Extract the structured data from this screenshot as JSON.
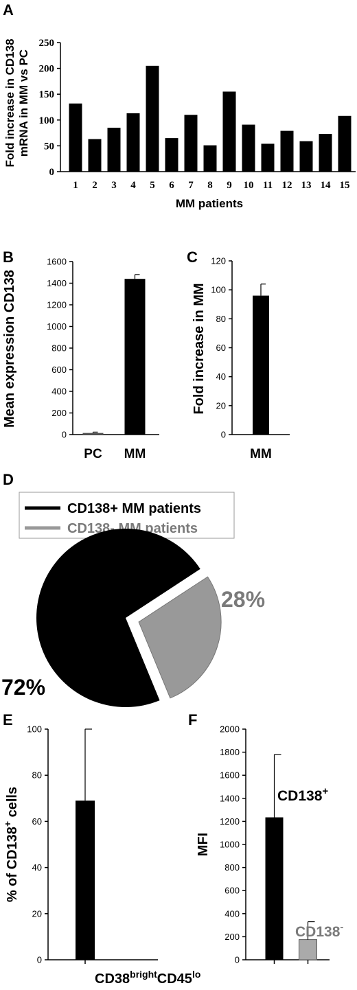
{
  "chart_data": [
    {
      "panel": "A",
      "type": "bar",
      "categories": [
        "1",
        "2",
        "3",
        "4",
        "5",
        "6",
        "7",
        "8",
        "9",
        "10",
        "11",
        "12",
        "13",
        "14",
        "15"
      ],
      "values": [
        132,
        63,
        85,
        113,
        205,
        65,
        110,
        51,
        155,
        91,
        54,
        79,
        59,
        73,
        108
      ],
      "xlabel": "MM patients",
      "ylabel_lines": [
        "Fold increase in CD138",
        "mRNA in MM vs PC"
      ],
      "ylim": [
        0,
        250
      ],
      "yticks": [
        "0",
        "50",
        "100",
        "150",
        "200",
        "250"
      ],
      "bar_color": "#000000"
    },
    {
      "panel": "B",
      "type": "bar",
      "categories": [
        "PC",
        "MM"
      ],
      "values": [
        15,
        1440
      ],
      "errors": [
        8,
        40
      ],
      "ylabel": "Mean expression CD138",
      "ylim": [
        0,
        1600
      ],
      "yticks": [
        "0",
        "200",
        "400",
        "600",
        "800",
        "1000",
        "1200",
        "1400",
        "1600"
      ],
      "bar_colors": [
        "#555555",
        "#000000"
      ]
    },
    {
      "panel": "C",
      "type": "bar",
      "categories": [
        "MM"
      ],
      "values": [
        96
      ],
      "errors": [
        8
      ],
      "ylabel": "Fold increase in MM",
      "ylim": [
        0,
        120
      ],
      "yticks": [
        "0",
        "20",
        "40",
        "60",
        "80",
        "100",
        "120"
      ],
      "bar_colors": [
        "#000000"
      ]
    },
    {
      "panel": "D",
      "type": "pie",
      "slices": [
        {
          "label": "CD138+ MM patients",
          "value": 72,
          "pct_label": "72%",
          "color": "#000000"
        },
        {
          "label": "CD138-  MM patients",
          "value": 28,
          "pct_label": "28%",
          "color": "#999999",
          "text_color": "#7a7a7a"
        }
      ],
      "legend": "top"
    },
    {
      "panel": "E",
      "type": "bar",
      "categories": [
        ""
      ],
      "values": [
        69
      ],
      "errors": [
        31
      ],
      "ylabel_pre": "% of  CD138",
      "ylabel_sup": "+",
      "ylabel_post": " cells",
      "xlabel_parts": [
        "CD38",
        "bright",
        "CD45",
        "lo"
      ],
      "ylim": [
        0,
        100
      ],
      "yticks": [
        "0",
        "20",
        "40",
        "60",
        "80",
        "100"
      ],
      "bar_colors": [
        "#000000"
      ]
    },
    {
      "panel": "F",
      "type": "bar",
      "categories": [
        "",
        ""
      ],
      "values": [
        1235,
        175
      ],
      "errors": [
        545,
        155
      ],
      "ylabel": "MFI",
      "ylim": [
        0,
        2000
      ],
      "yticks": [
        "0",
        "200",
        "400",
        "600",
        "800",
        "1000",
        "1200",
        "1400",
        "1600",
        "1800",
        "2000"
      ],
      "bar_colors": [
        "#000000",
        "#aaaaaa"
      ],
      "annotations": [
        {
          "text": "CD138",
          "sup": "+",
          "color": "#000000"
        },
        {
          "text": "CD138",
          "sup": "-",
          "color": "#7a7a7a"
        }
      ]
    }
  ],
  "panel_labels": [
    "A",
    "B",
    "C",
    "D",
    "E",
    "F"
  ]
}
